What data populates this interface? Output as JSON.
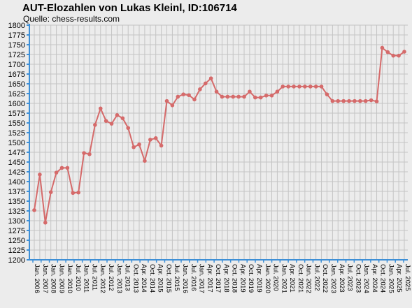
{
  "chart_data": {
    "type": "line",
    "title": "AUT-Elozahlen von Lukas Kleinl, ID:106714",
    "subtitle": "Quelle: chess-results.com",
    "xlabel": "",
    "ylabel": "",
    "ylim": [
      1200,
      1800
    ],
    "y_ticks": [
      1200,
      1225,
      1250,
      1275,
      1300,
      1325,
      1350,
      1375,
      1400,
      1425,
      1450,
      1475,
      1500,
      1525,
      1550,
      1575,
      1600,
      1625,
      1650,
      1675,
      1700,
      1725,
      1750,
      1775,
      1800
    ],
    "x_tick_labels": [
      "Jan. 2006",
      "Jan. 2007",
      "Jan. 2008",
      "Jan. 2009",
      "Jan. 2010",
      "Jul. 2010",
      "Jan. 2011",
      "Jul. 2011",
      "Jan. 2012",
      "Jul. 2012",
      "Jan. 2013",
      "Jul. 2013",
      "Oct. 2013",
      "Apr. 2014",
      "Oct. 2014",
      "Apr. 2015",
      "Oct. 2015",
      "Jul. 2015",
      "Jan. 2016",
      "Jul. 2016",
      "Jan. 2017",
      "Apr. 2017",
      "Oct. 2017",
      "Apr. 2018",
      "Oct. 2018",
      "Apr. 2019",
      "Oct. 2019",
      "Apr. 2019",
      "Jan. 2020",
      "Jul. 2020",
      "Jan. 2021",
      "Apr. 2021",
      "Oct. 2021",
      "Jan. 2022",
      "Jul. 2022",
      "Oct. 2022",
      "Jan. 2023",
      "Apr. 2023",
      "Jul. 2023",
      "Oct. 2023",
      "Jan. 2024",
      "Apr. 2024",
      "Oct. 2024",
      "Jan. 2025",
      "Apr. 2025",
      "Jul. 2025"
    ],
    "grid": true,
    "series": [
      {
        "values": [
          1327,
          1418,
          1295,
          1373,
          1423,
          1435,
          1435,
          1371,
          1372,
          1473,
          1470,
          1545,
          1587,
          1555,
          1548,
          1570,
          1562,
          1537,
          1488,
          1495,
          1453,
          1507,
          1511,
          1492,
          1606,
          1595,
          1617,
          1623,
          1621,
          1610,
          1636,
          1651,
          1664,
          1630,
          1617,
          1617,
          1617,
          1617,
          1617,
          1630,
          1615,
          1615,
          1620,
          1620,
          1630,
          1643,
          1643,
          1643,
          1643,
          1643,
          1643,
          1643,
          1643,
          1623,
          1606,
          1606,
          1606,
          1606,
          1606,
          1606,
          1606,
          1608,
          1605,
          1742,
          1731,
          1722,
          1722,
          1732
        ]
      }
    ],
    "colors": {
      "line": "#d56a6a",
      "axis": "#3d8fd6",
      "grid": "#c4c4c4",
      "plot_bg": "#ececec"
    }
  }
}
